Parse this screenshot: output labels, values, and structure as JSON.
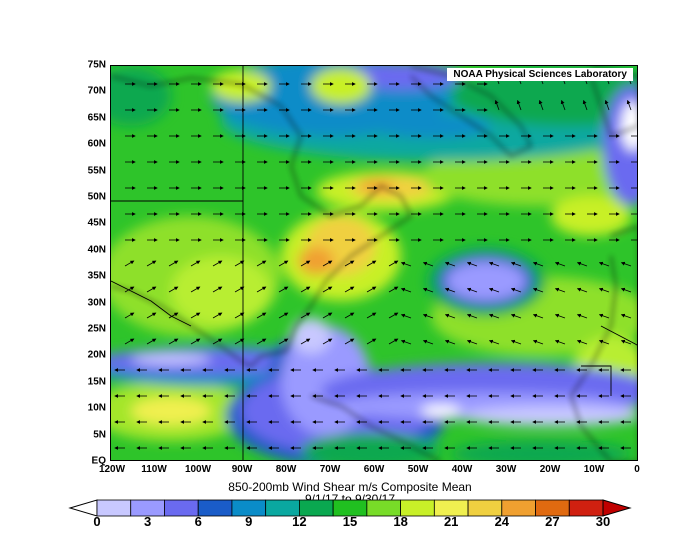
{
  "credit": "NOAA Physical Sciences Laboratory",
  "title_line1": "850-200mb Wind Shear m/s Composite Mean",
  "title_line2": "9/1/17  to 9/30/17",
  "lat_labels": [
    "75N",
    "70N",
    "65N",
    "60N",
    "55N",
    "50N",
    "45N",
    "40N",
    "35N",
    "30N",
    "25N",
    "20N",
    "15N",
    "10N",
    "5N",
    "EQ"
  ],
  "lon_labels": [
    "120W",
    "110W",
    "100W",
    "90W",
    "80W",
    "70W",
    "60W",
    "50W",
    "40W",
    "30W",
    "20W",
    "10W",
    "0"
  ],
  "colorbar": {
    "ticks": [
      "0",
      "3",
      "6",
      "9",
      "12",
      "15",
      "18",
      "21",
      "24",
      "27",
      "30"
    ],
    "colors": [
      "#ffffff",
      "#c8c8ff",
      "#9a9aff",
      "#6a6af0",
      "#1a5cc8",
      "#0a8cc8",
      "#0aa8a0",
      "#0aa850",
      "#20c020",
      "#78dc28",
      "#c8f028",
      "#f0f050",
      "#f0d040",
      "#f0a030",
      "#e06a10",
      "#d02010",
      "#c00000"
    ]
  }
}
